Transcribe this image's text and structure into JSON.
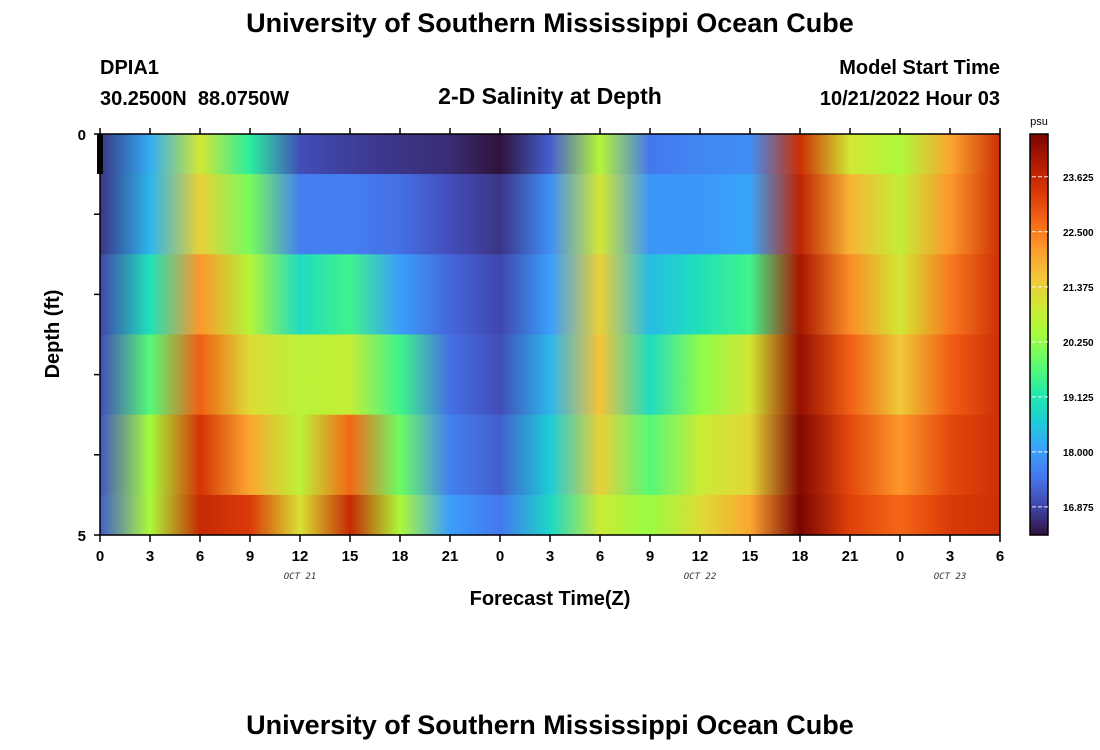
{
  "page": {
    "title": "University of Southern Mississippi Ocean Cube",
    "footer_title": "University of Southern Mississippi Ocean Cube",
    "station_id": "DPIA1",
    "station_coords": "30.2500N  88.0750W",
    "center_title": "2-D Salinity at Depth",
    "model_label": "Model Start Time",
    "model_time": "10/21/2022 Hour 03"
  },
  "chart_data": {
    "type": "heatmap",
    "title": "2-D Salinity at Depth",
    "xlabel": "Forecast Time(Z)",
    "ylabel": "Depth (ft)",
    "x_tick_labels": [
      "0",
      "3",
      "6",
      "9",
      "12",
      "15",
      "18",
      "21",
      "0",
      "3",
      "6",
      "9",
      "12",
      "15",
      "18",
      "21",
      "0",
      "3",
      "6"
    ],
    "x_day_labels": [
      {
        "label": "OCT 21",
        "at_tick": 4
      },
      {
        "label": "OCT 22",
        "at_tick": 12
      },
      {
        "label": "OCT 23",
        "at_tick": 17
      }
    ],
    "y_tick_labels": [
      "0",
      "5"
    ],
    "ylim": [
      0,
      5
    ],
    "colorbar": {
      "unit": "psu",
      "labels": [
        "23.625",
        "22.500",
        "21.375",
        "20.250",
        "19.125",
        "18.000",
        "16.875"
      ],
      "min": 16.3,
      "max": 24.5
    },
    "colors": {
      "scale": [
        "#30123b",
        "#4145ab",
        "#4675ed",
        "#39a2fc",
        "#1bcfd4",
        "#24eca6",
        "#61fc6c",
        "#a4fc3b",
        "#d1e834",
        "#f3c63a",
        "#fe9b2d",
        "#f36315",
        "#d93806",
        "#b11901",
        "#7a0402"
      ]
    },
    "time_hours": [
      0,
      3,
      6,
      9,
      12,
      15,
      18,
      21,
      24,
      27,
      30,
      33,
      36,
      39,
      42,
      45,
      48,
      51,
      54
    ],
    "depth_layers": [
      {
        "depth": "0.0-0.5",
        "values": [
          16.7,
          18.2,
          21.0,
          19.3,
          17.0,
          16.8,
          16.7,
          16.6,
          16.3,
          17.2,
          20.6,
          17.5,
          17.7,
          17.8,
          23.5,
          21.0,
          20.5,
          22.0,
          23.5
        ]
      },
      {
        "depth": "0.5-1.5",
        "values": [
          16.7,
          18.3,
          21.4,
          20.0,
          17.6,
          17.6,
          17.4,
          17.0,
          16.7,
          17.8,
          21.0,
          17.9,
          17.9,
          18.1,
          23.7,
          21.8,
          20.8,
          22.2,
          23.5
        ]
      },
      {
        "depth": "1.5-2.5",
        "values": [
          16.9,
          19.0,
          22.2,
          20.6,
          18.9,
          19.5,
          18.0,
          17.3,
          16.9,
          18.0,
          21.4,
          18.4,
          19.0,
          19.5,
          24.0,
          22.3,
          21.0,
          22.5,
          23.5
        ]
      },
      {
        "depth": "2.5-3.5",
        "values": [
          17.0,
          19.7,
          22.8,
          21.2,
          20.7,
          20.8,
          19.5,
          17.4,
          17.0,
          18.3,
          21.6,
          18.9,
          20.2,
          21.0,
          24.2,
          22.8,
          21.5,
          22.8,
          23.5
        ]
      },
      {
        "depth": "3.5-4.5",
        "values": [
          17.1,
          20.4,
          23.4,
          22.0,
          20.7,
          22.7,
          19.9,
          17.6,
          17.2,
          18.6,
          21.4,
          19.7,
          20.9,
          21.3,
          24.4,
          23.1,
          22.2,
          23.1,
          23.5
        ]
      },
      {
        "depth": "4.5-5.0",
        "values": [
          17.2,
          20.5,
          23.6,
          23.3,
          21.1,
          23.6,
          20.5,
          18.0,
          17.5,
          18.8,
          20.9,
          20.3,
          21.2,
          22.0,
          24.5,
          23.2,
          22.7,
          23.3,
          23.5
        ]
      }
    ]
  }
}
